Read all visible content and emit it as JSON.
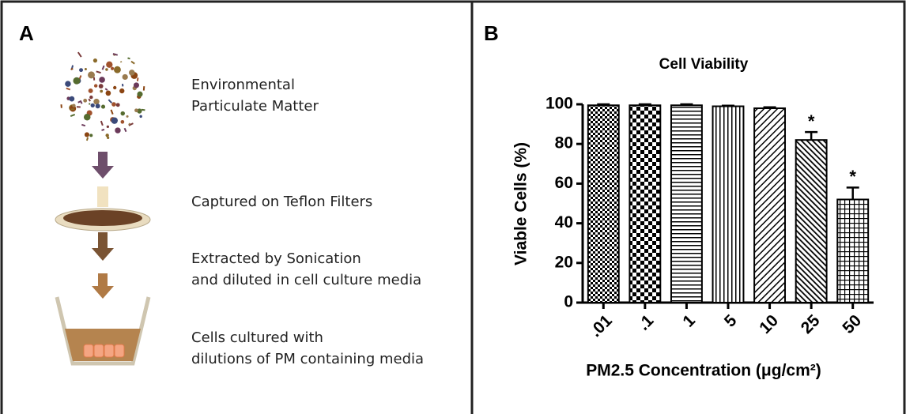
{
  "panel_a": {
    "label": "A",
    "steps": [
      [
        "Environmental",
        "Particulate Matter"
      ],
      [
        "Captured on Teflon Filters"
      ],
      [
        "Extracted by Sonication",
        " and diluted in cell culture media"
      ],
      [
        "Cells cultured with",
        "dilutions of PM containing media"
      ]
    ]
  },
  "chart_data": {
    "type": "bar",
    "panel_label": "B",
    "title": "Cell Viability",
    "x_label": "PM2.5 Concentration (μg/cm²)",
    "y_label": "Viable Cells (%)",
    "categories": [
      ".01",
      ".1",
      "1",
      "5",
      "10",
      "25",
      "50"
    ],
    "values": [
      99.5,
      99.5,
      99.5,
      99,
      98,
      82,
      52
    ],
    "errors": [
      0.5,
      0.5,
      0.5,
      0.3,
      0.5,
      4,
      6
    ],
    "markers": [
      null,
      null,
      null,
      null,
      null,
      "*",
      "*"
    ],
    "color": "#000000",
    "ylim": [
      0,
      100
    ],
    "yticks": [
      0,
      20,
      40,
      60,
      80,
      100
    ],
    "grid": false
  }
}
